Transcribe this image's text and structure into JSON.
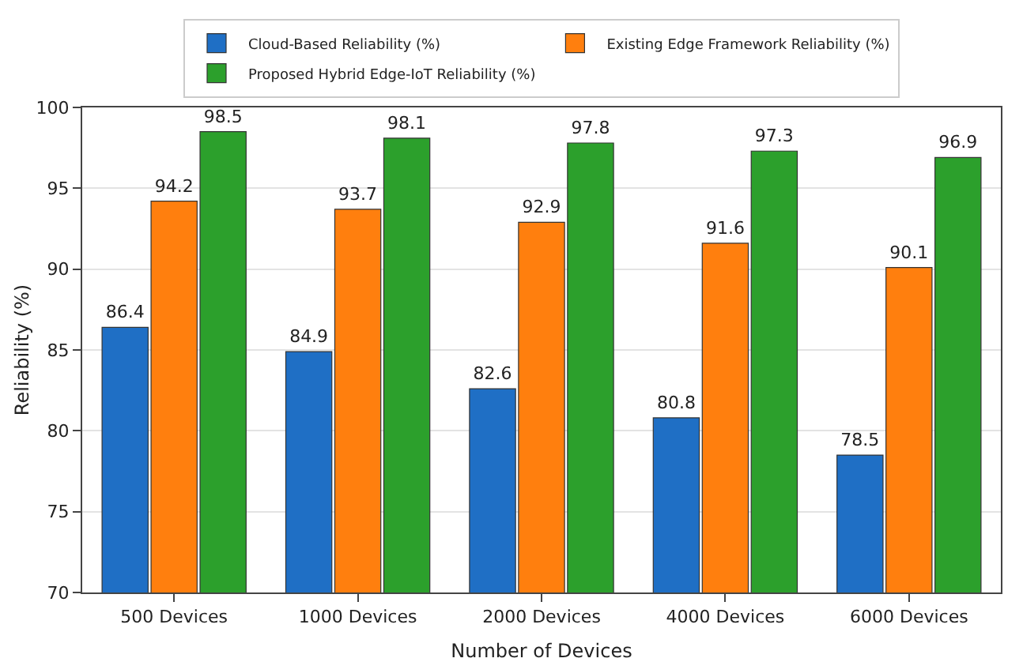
{
  "chart_data": {
    "type": "bar",
    "xlabel": "Number of Devices",
    "ylabel": "Reliability (%)",
    "categories": [
      "500 Devices",
      "1000 Devices",
      "2000 Devices",
      "4000 Devices",
      "6000 Devices"
    ],
    "series": [
      {
        "name": "Cloud-Based Reliability (%)",
        "color": "#1f6fc5",
        "values": [
          86.4,
          84.9,
          82.6,
          80.8,
          78.5
        ]
      },
      {
        "name": "Existing Edge Framework Reliability (%)",
        "color": "#ff7f0e",
        "values": [
          94.2,
          93.7,
          92.9,
          91.6,
          90.1
        ]
      },
      {
        "name": "Proposed Hybrid Edge-IoT Reliability (%)",
        "color": "#2ca02c",
        "values": [
          98.5,
          98.1,
          97.8,
          97.3,
          96.9
        ]
      }
    ],
    "ylim": [
      70,
      100
    ],
    "yticks": [
      70,
      75,
      80,
      85,
      90,
      95,
      100
    ],
    "grid": "y",
    "legend": "top",
    "data_labels": true
  }
}
